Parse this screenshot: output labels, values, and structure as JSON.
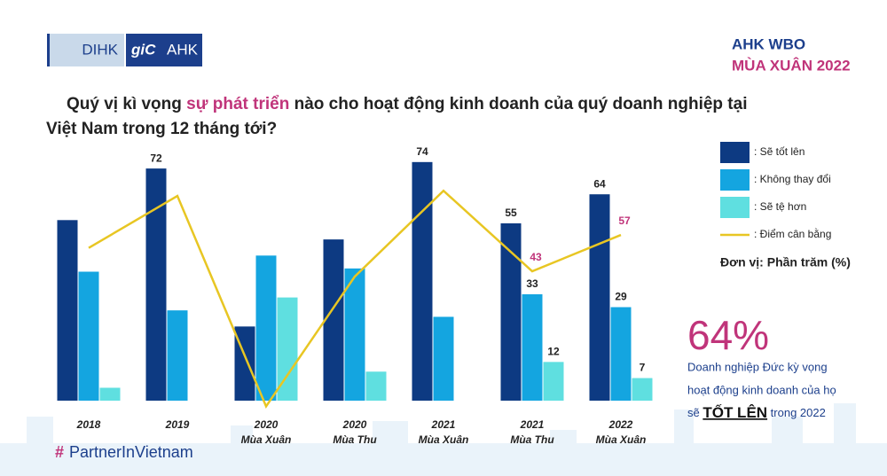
{
  "header": {
    "logo_left": "DIHK",
    "logo_right_prefix": "giC",
    "logo_right": "AHK",
    "survey": "AHK WBO",
    "season": "MÙA XUÂN 2022",
    "question_start": "Quý vị kì vọng ",
    "question_highlight": "sự phát triển",
    "question_end": " nào cho hoạt động kinh doanh của quý doanh nghiệp tại",
    "question_line2": "Việt Nam trong 12 tháng tới?"
  },
  "chart_data": {
    "type": "bar",
    "categories": [
      [
        "2018"
      ],
      [
        "2019"
      ],
      [
        "2020",
        "Mùa Xuân"
      ],
      [
        "2020",
        "Mùa Thu"
      ],
      [
        "2021",
        "Mùa Xuân"
      ],
      [
        "2021",
        "Mùa Thu"
      ],
      [
        "2022",
        "Mùa Xuân"
      ]
    ],
    "ylim": [
      0,
      80
    ],
    "y2lim": [
      -6.8,
      92.5
    ],
    "unit": "Đơn vị: Phần trăm (%)",
    "series": [
      {
        "name": ": Sẽ tốt lên",
        "color": "#0d3a82",
        "values": [
          56,
          72,
          23,
          50,
          74,
          55,
          64
        ],
        "labels_shown": [
          false,
          true,
          false,
          false,
          true,
          true,
          true
        ]
      },
      {
        "name": ": Không thay đổi",
        "color": "#14a5e0",
        "values": [
          40,
          28,
          45,
          41,
          26,
          33,
          29
        ],
        "labels_shown": [
          false,
          false,
          false,
          false,
          false,
          true,
          true
        ]
      },
      {
        "name": ": Sẽ tệ hơn",
        "color": "#5fdfe0",
        "values": [
          4,
          0,
          32,
          9,
          0,
          12,
          7
        ],
        "labels_shown": [
          false,
          false,
          false,
          false,
          false,
          true,
          true
        ]
      },
      {
        "name": ": Điểm cân bằng",
        "color": "#e8c623",
        "type": "line",
        "axis": "y2",
        "values": [
          52,
          72,
          -9,
          41,
          74,
          43,
          57
        ],
        "labels_shown": [
          false,
          false,
          false,
          false,
          false,
          true,
          true
        ],
        "label_color": "#c0347a"
      }
    ]
  },
  "highlight": {
    "big": "64%",
    "line1": "Doanh nghiệp Đức kỳ vọng",
    "line2": "hoạt động kinh doanh của họ",
    "line3_start": "sẽ ",
    "line3_bold": "TỐT LÊN",
    "line3_end": " trong 2022"
  },
  "footer": {
    "hashtag": "#",
    "brand": "PartnerInVietnam"
  }
}
